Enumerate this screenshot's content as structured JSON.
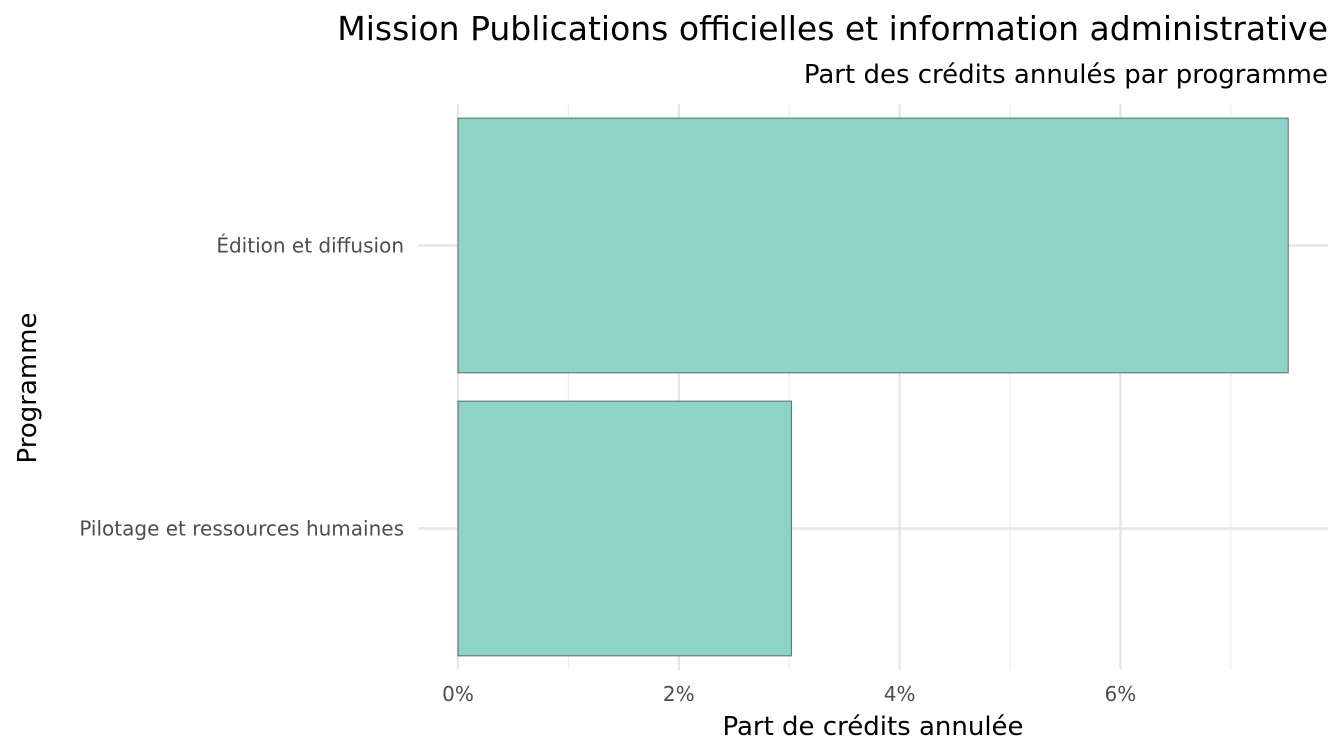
{
  "chart_data": {
    "type": "bar",
    "orientation": "horizontal",
    "title": "Mission Publications officielles et information administrative",
    "subtitle": "Part des crédits annulés par programme",
    "xlabel": "Part de crédits annulée",
    "ylabel": "Programme",
    "categories": [
      "Édition et diffusion",
      "Pilotage et ressources humaines"
    ],
    "values": [
      7.52,
      3.02
    ],
    "x_ticks": [
      "0%",
      "2%",
      "4%",
      "6%"
    ],
    "xlim": [
      0,
      7.9
    ],
    "grid": true,
    "bar_color": "#8ed3c7",
    "bar_border_color": "#5a6b68"
  }
}
